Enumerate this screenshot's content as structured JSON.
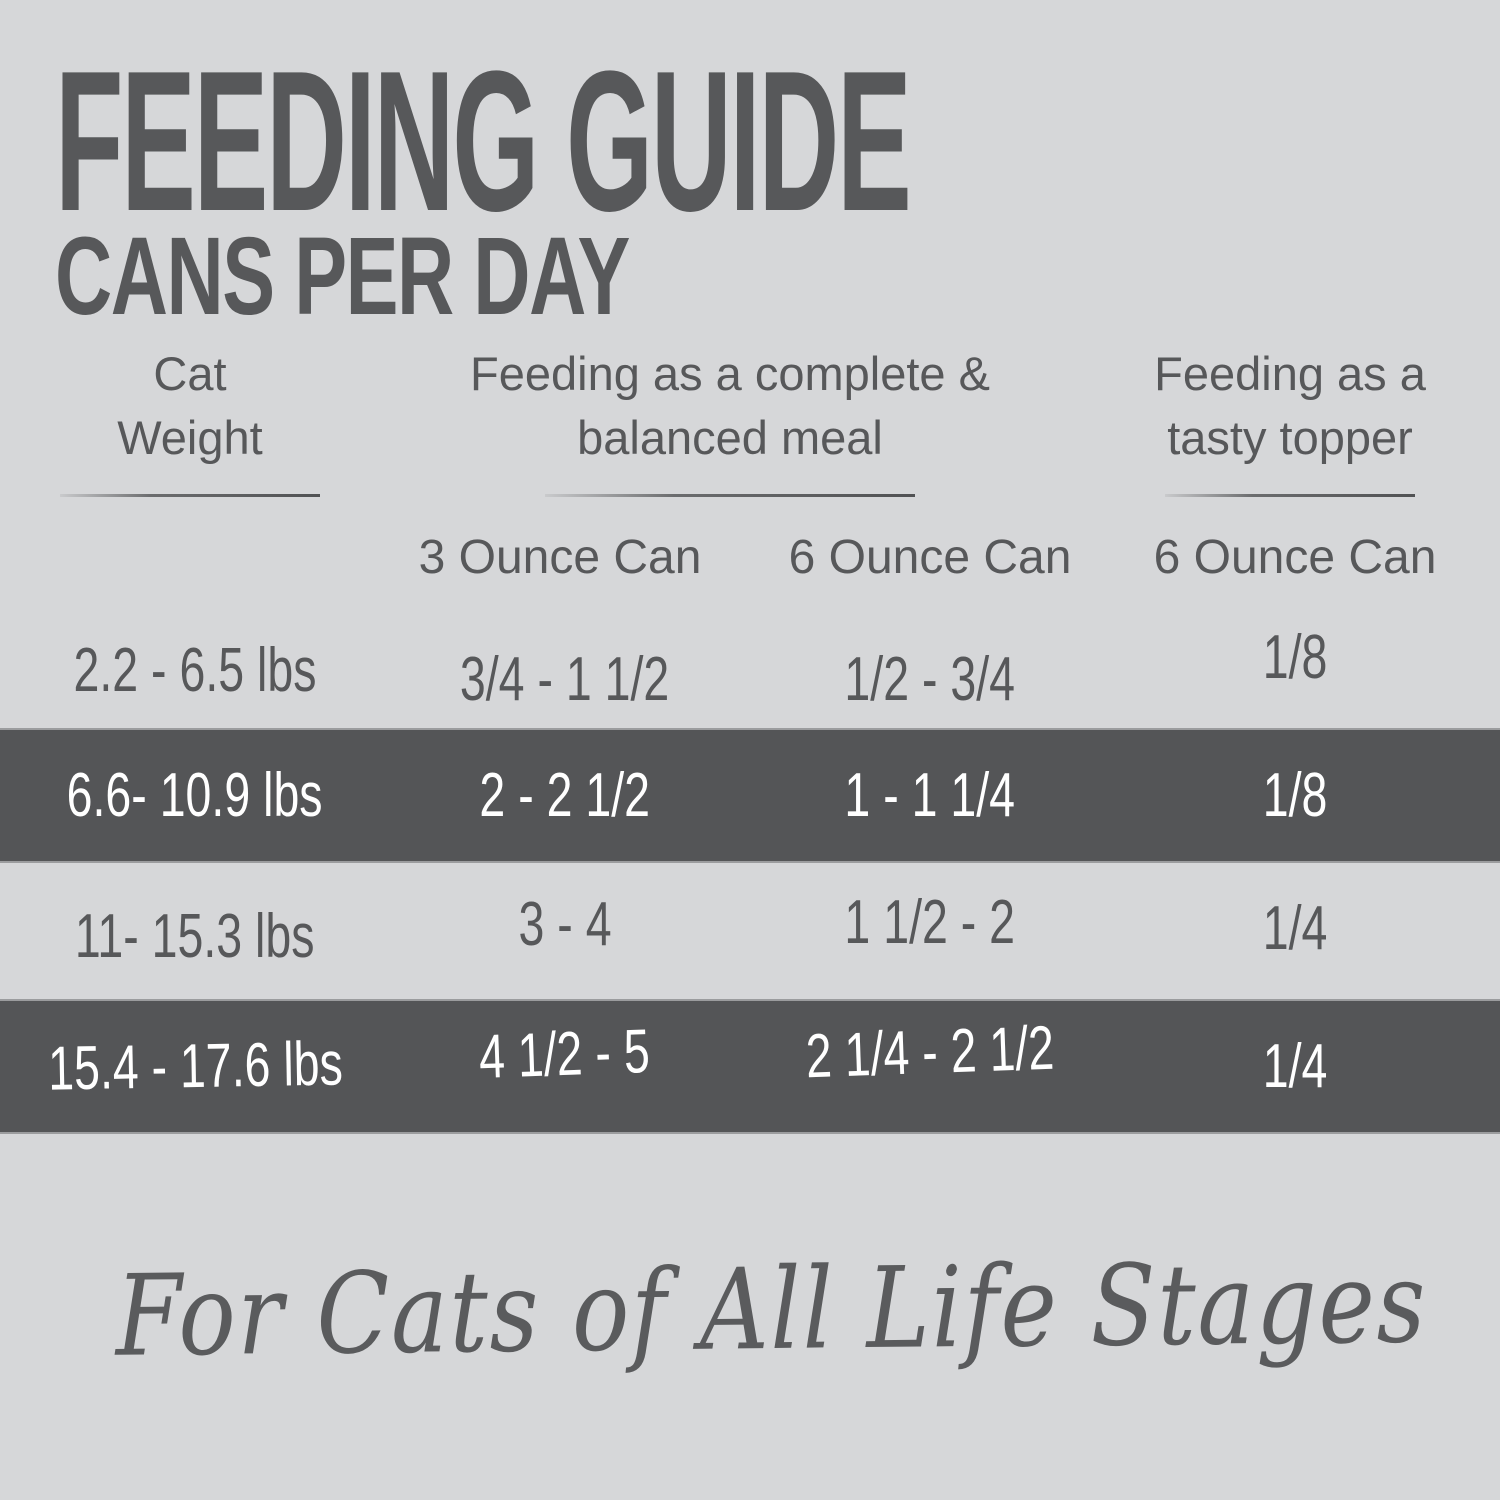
{
  "header": {
    "title": "FEEDING GUIDE",
    "subtitle": "CANS PER DAY"
  },
  "table": {
    "groups": [
      {
        "line1": "Cat",
        "line2": "Weight"
      },
      {
        "line1": "Feeding as a complete &",
        "line2": "balanced meal"
      },
      {
        "line1": "Feeding as a",
        "line2": "tasty topper"
      }
    ],
    "sub_headers": [
      "3 Ounce Can",
      "6 Ounce Can",
      "6 Ounce Can"
    ],
    "rows": [
      {
        "weight": "2.2 - 6.5 lbs",
        "meal_3oz": "3/4 - 1 1/2",
        "meal_6oz": "1/2 - 3/4",
        "topper_6oz": "1/8",
        "highlighted": false
      },
      {
        "weight": "6.6- 10.9 lbs",
        "meal_3oz": "2 - 2 1/2",
        "meal_6oz": "1 - 1 1/4",
        "topper_6oz": "1/8",
        "highlighted": true
      },
      {
        "weight": "11- 15.3 lbs",
        "meal_3oz": "3 - 4",
        "meal_6oz": "1 1/2 - 2",
        "topper_6oz": "1/4",
        "highlighted": false
      },
      {
        "weight": "15.4 - 17.6 lbs",
        "meal_3oz": "4 1/2 - 5",
        "meal_6oz": "2 1/4 - 2 1/2",
        "topper_6oz": "1/4",
        "highlighted": true
      }
    ]
  },
  "footer": {
    "tagline": "For Cats of All Life Stages"
  },
  "colors": {
    "background": "#d6d7d9",
    "band": "#545557",
    "text": "#57585a",
    "band_text": "#ffffff"
  },
  "chart_data": {
    "type": "table",
    "title": "FEEDING GUIDE",
    "subtitle": "CANS PER DAY",
    "column_groups": [
      "Cat Weight",
      "Feeding as a complete & balanced meal",
      "Feeding as a tasty topper"
    ],
    "columns": [
      "Cat Weight",
      "3 Ounce Can",
      "6 Ounce Can",
      "6 Ounce Can"
    ],
    "rows": [
      [
        "2.2 - 6.5 lbs",
        "3/4 - 1 1/2",
        "1/2 - 3/4",
        "1/8"
      ],
      [
        "6.6- 10.9 lbs",
        "2 - 2 1/2",
        "1 - 1 1/4",
        "1/8"
      ],
      [
        "11- 15.3 lbs",
        "3 - 4",
        "1 1/2 - 2",
        "1/4"
      ],
      [
        "15.4 - 17.6 lbs",
        "4 1/2 - 5",
        "2 1/4 - 2 1/2",
        "1/4"
      ]
    ],
    "highlighted_row_indices": [
      1,
      3
    ],
    "footnote": "For Cats of All Life Stages",
    "legend_position": "none",
    "grid": false
  }
}
